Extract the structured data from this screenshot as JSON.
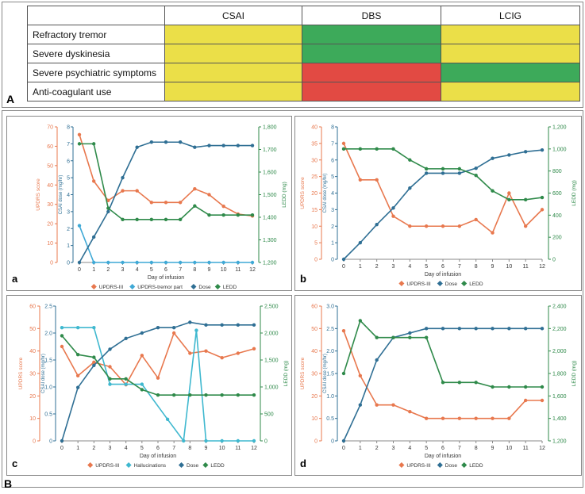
{
  "table": {
    "columns": [
      "",
      "CSAI",
      "DBS",
      "LCIG"
    ],
    "rows": [
      {
        "label": "Refractory tremor",
        "cells": [
          "yellow",
          "green",
          "yellow"
        ]
      },
      {
        "label": "Severe dyskinesia",
        "cells": [
          "yellow",
          "green",
          "yellow"
        ]
      },
      {
        "label": "Severe psychiatric symptoms",
        "cells": [
          "yellow",
          "red",
          "green"
        ]
      },
      {
        "label": "Anti-coagulant use",
        "cells": [
          "yellow",
          "red",
          "yellow"
        ]
      }
    ],
    "colors": {
      "yellow": "#ebdf48",
      "green": "#3daa5a",
      "red": "#e24a43"
    }
  },
  "panel_labels": {
    "A": "A",
    "B": "B"
  },
  "series_colors": {
    "UPDRS-III": "#e8784e",
    "UPDRS-tremor part": "#3fa9d6",
    "Hallucinations": "#3fb8cf",
    "Dose": "#2f6f94",
    "LEDD": "#2f8a4a"
  },
  "chart_data": [
    {
      "id": "a",
      "type": "line",
      "label": "a",
      "xlabel": "Day of infusion",
      "x": [
        0,
        1,
        2,
        3,
        4,
        5,
        6,
        7,
        8,
        9,
        10,
        11,
        12
      ],
      "left_axis": {
        "label": "UPDRS score",
        "ticks": [
          0,
          10,
          20,
          30,
          40,
          50,
          60,
          70
        ],
        "max": 70
      },
      "mid_axis": {
        "label": "CSAI dose (mg/hr)",
        "ticks": [
          0,
          1,
          2,
          3,
          4,
          5,
          6,
          7,
          8
        ],
        "max": 8
      },
      "right_axis": {
        "label": "LEDD (mg)",
        "ticks": [
          "1,200",
          "1,300",
          "1,400",
          "1,500",
          "1,600",
          "1,700",
          "1,800"
        ],
        "min": 1200,
        "max": 1800
      },
      "series": [
        {
          "name": "UPDRS-III",
          "axis": "left",
          "values": [
            66,
            42,
            32,
            37,
            37,
            31,
            31,
            31,
            38,
            35,
            29,
            25,
            24
          ]
        },
        {
          "name": "UPDRS-tremor part",
          "axis": "left",
          "values": [
            19,
            0,
            0,
            0,
            0,
            0,
            0,
            0,
            0,
            0,
            0,
            0,
            0
          ]
        },
        {
          "name": "Dose",
          "axis": "mid",
          "values": [
            0,
            1.5,
            3,
            5,
            6.8,
            7.1,
            7.1,
            7.1,
            6.8,
            6.9,
            6.9,
            6.9,
            6.9
          ]
        },
        {
          "name": "LEDD",
          "axis": "right",
          "values": [
            1725,
            1725,
            1440,
            1390,
            1390,
            1390,
            1390,
            1390,
            1450,
            1410,
            1410,
            1410,
            1410
          ]
        }
      ]
    },
    {
      "id": "b",
      "type": "line",
      "label": "b",
      "xlabel": "Day of infusion",
      "x": [
        0,
        1,
        2,
        3,
        4,
        5,
        6,
        7,
        8,
        9,
        10,
        11,
        12
      ],
      "left_axis": {
        "label": "UPDRS score",
        "ticks": [
          0,
          5,
          10,
          15,
          20,
          25,
          30,
          35,
          40
        ],
        "max": 40
      },
      "mid_axis": {
        "label": "CSAI dose (mg/hr)",
        "ticks": [
          0,
          1,
          2,
          3,
          4,
          5,
          6,
          7,
          8
        ],
        "max": 8
      },
      "right_axis": {
        "label": "LEDD (mg)",
        "ticks": [
          "0",
          "200",
          "400",
          "600",
          "800",
          "1,000",
          "1,200"
        ],
        "min": 0,
        "max": 1200
      },
      "series": [
        {
          "name": "UPDRS-III",
          "axis": "left",
          "values": [
            35,
            24,
            24,
            13,
            10,
            10,
            10,
            10,
            12,
            8,
            20,
            10,
            15
          ]
        },
        {
          "name": "Dose",
          "axis": "mid",
          "values": [
            0,
            1,
            2.1,
            3.1,
            4.3,
            5.2,
            5.2,
            5.2,
            5.5,
            6.1,
            6.3,
            6.5,
            6.6
          ]
        },
        {
          "name": "LEDD",
          "axis": "right",
          "values": [
            1000,
            1000,
            1000,
            1000,
            900,
            820,
            820,
            820,
            760,
            620,
            540,
            540,
            560
          ]
        }
      ]
    },
    {
      "id": "c",
      "type": "line",
      "label": "c",
      "xlabel": "Day of infusion",
      "x": [
        0,
        1,
        2,
        3,
        4,
        5,
        6,
        7,
        8,
        9,
        10,
        11,
        12
      ],
      "left_axis": {
        "label": "UPDRS score",
        "ticks": [
          0,
          10,
          20,
          30,
          40,
          50,
          60
        ],
        "max": 60
      },
      "mid_axis": {
        "label": "CSAI dose (mg/hr)",
        "ticks": [
          "0",
          "0.5",
          "1.0",
          "1.5",
          "2.0",
          "2.5"
        ],
        "max": 2.5
      },
      "right_axis": {
        "label": "LEDD (mg)",
        "ticks": [
          "0",
          "500",
          "1,000",
          "1,500",
          "2,000",
          "2,500"
        ],
        "min": 0,
        "max": 2500
      },
      "series": [
        {
          "name": "UPDRS-III",
          "axis": "left",
          "values": [
            42,
            29,
            35,
            33,
            25,
            38,
            28,
            48,
            39,
            40,
            37,
            39,
            41
          ]
        },
        {
          "name": "Hallucinations",
          "axis": "right",
          "values": [
            2100,
            2100,
            2100,
            1050,
            1050,
            1050,
            400,
            0,
            2050,
            0,
            0,
            0,
            0
          ]
        },
        {
          "name": "Dose",
          "axis": "mid",
          "values": [
            0,
            0.99,
            1.4,
            1.7,
            1.9,
            2.0,
            2.1,
            2.1,
            2.2,
            2.15,
            2.15,
            2.15,
            2.15
          ]
        },
        {
          "name": "LEDD",
          "axis": "right",
          "values": [
            1950,
            1600,
            1550,
            1150,
            1150,
            950,
            850,
            850,
            850,
            850,
            850,
            850,
            850
          ]
        }
      ],
      "plot_x": [
        0,
        1,
        2,
        3,
        4,
        5,
        6,
        7,
        8,
        9,
        10,
        11,
        12
      ],
      "series_x": {
        "UPDRS-III": [
          0,
          1,
          2,
          3,
          4,
          5,
          6,
          7,
          8,
          9,
          10,
          11,
          12
        ],
        "Hallucinations": [
          0,
          1,
          2,
          3,
          4,
          5,
          6.6,
          7.6,
          8.4,
          9,
          10,
          11,
          12
        ],
        "Dose": [
          0,
          1,
          2,
          3,
          4,
          5,
          6,
          7,
          8,
          9,
          10,
          11,
          12
        ],
        "LEDD": [
          0,
          1,
          2,
          3,
          4,
          5,
          6,
          7,
          8,
          9,
          10,
          11,
          12
        ]
      }
    },
    {
      "id": "d",
      "type": "line",
      "label": "d",
      "xlabel": "Day of infusion",
      "x": [
        0,
        1,
        2,
        3,
        4,
        5,
        6,
        7,
        8,
        9,
        10,
        11,
        12
      ],
      "left_axis": {
        "label": "UPDRS score",
        "ticks": [
          0,
          10,
          20,
          30,
          40,
          50,
          60
        ],
        "max": 60
      },
      "mid_axis": {
        "label": "CSAI dose (mg/hr)",
        "ticks": [
          "0",
          "0.5",
          "1.0",
          "1.5",
          "2.0",
          "2.5",
          "3.0"
        ],
        "max": 3.0
      },
      "right_axis": {
        "label": "LEDD (mg)",
        "ticks": [
          "1,200",
          "1,400",
          "1,600",
          "1,800",
          "2,000",
          "2,200",
          "2,400"
        ],
        "min": 1200,
        "max": 2400
      },
      "series": [
        {
          "name": "UPDRS-III",
          "axis": "left",
          "values": [
            49,
            29,
            16,
            16,
            13,
            10,
            10,
            10,
            10,
            10,
            10,
            18,
            18
          ]
        },
        {
          "name": "Dose",
          "axis": "mid",
          "values": [
            0,
            0.8,
            1.8,
            2.3,
            2.4,
            2.5,
            2.5,
            2.5,
            2.5,
            2.5,
            2.5,
            2.5,
            2.5
          ]
        },
        {
          "name": "LEDD",
          "axis": "right",
          "values": [
            1800,
            2270,
            2120,
            2120,
            2120,
            2120,
            1720,
            1720,
            1720,
            1680,
            1680,
            1680,
            1680
          ]
        }
      ]
    }
  ]
}
